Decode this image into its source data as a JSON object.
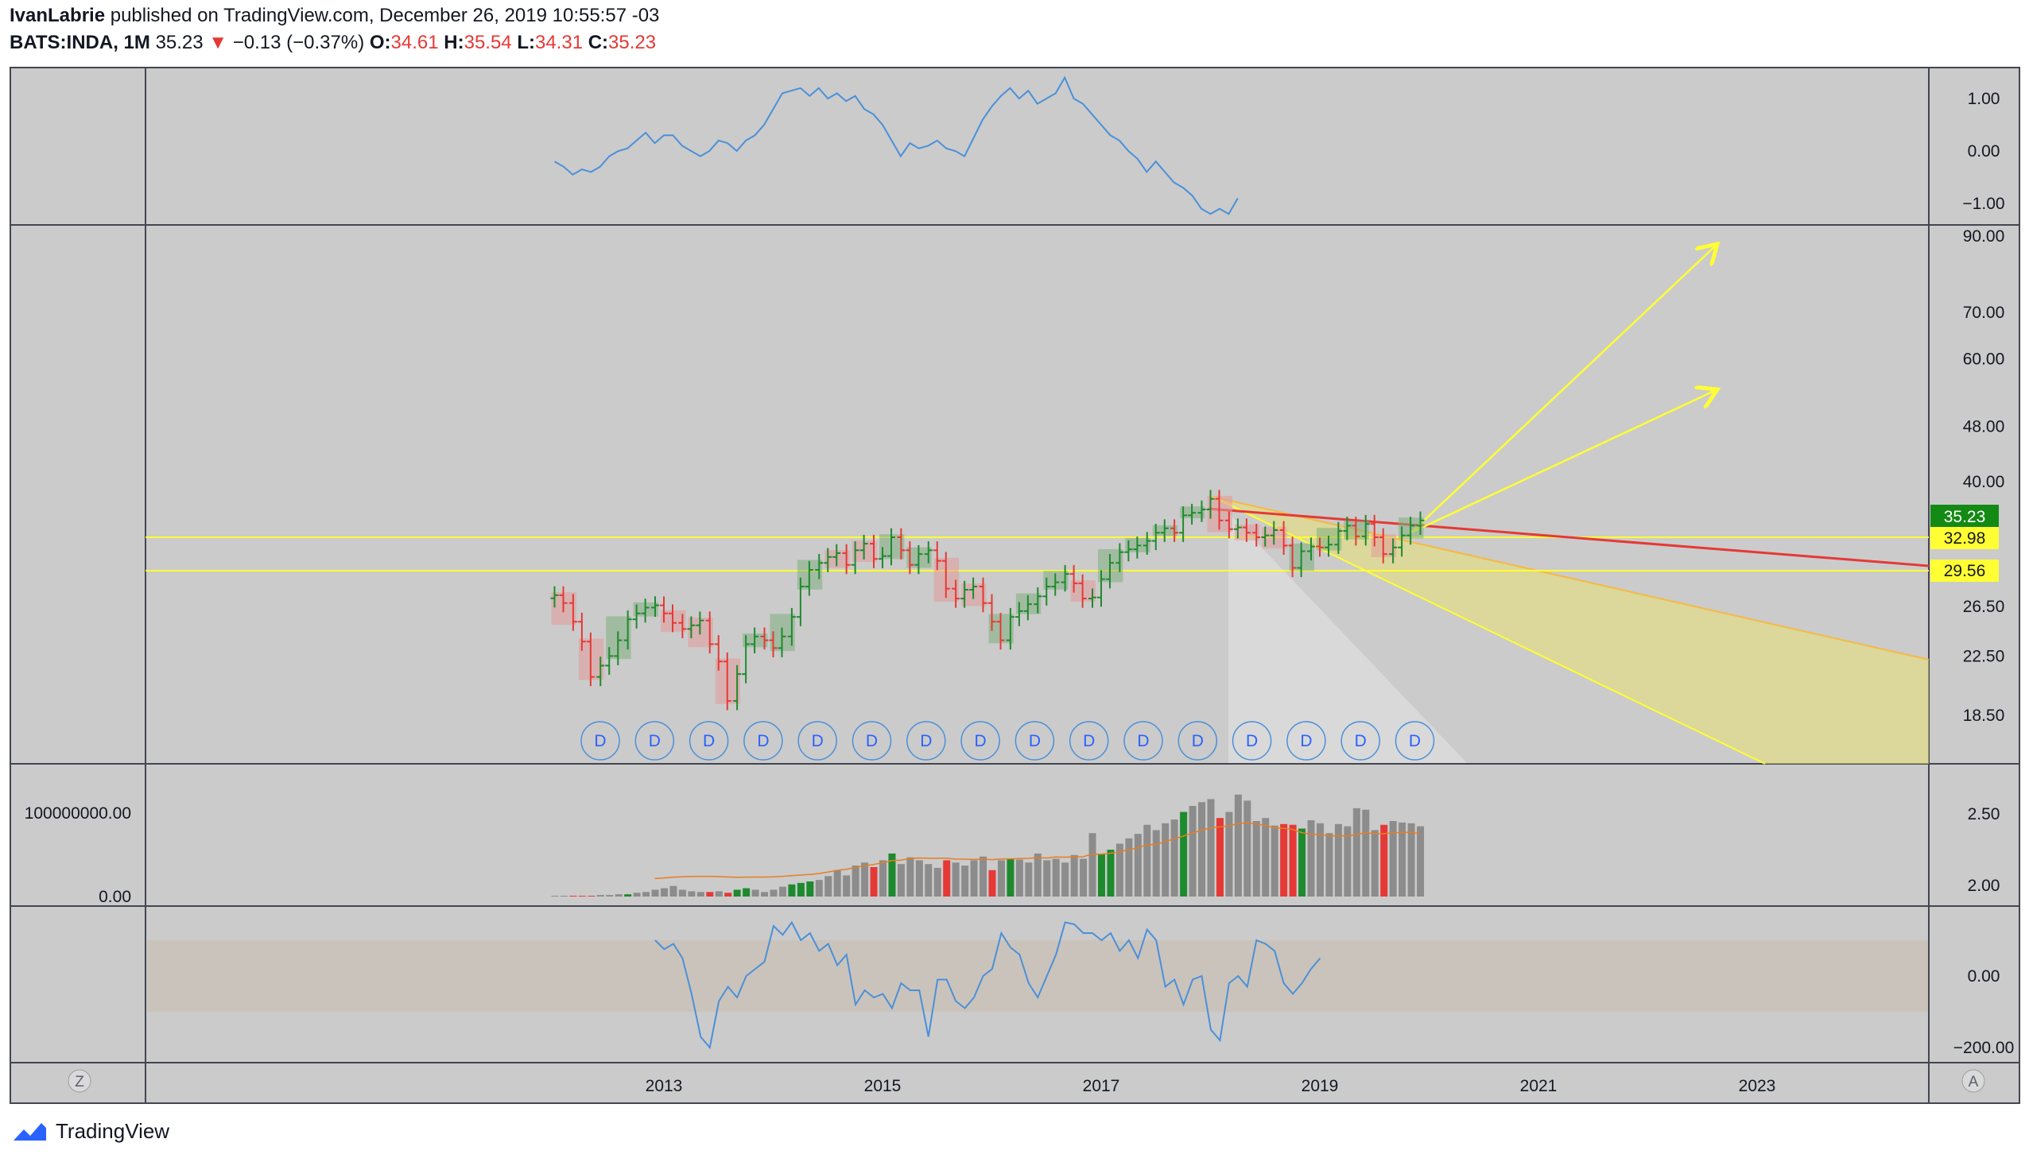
{
  "header": {
    "publisher": "IvanLabrie",
    "published_text": "published on TradingView.com, December 26, 2019 10:55:57 -03",
    "symbol": "BATS:INDA, 1M",
    "last": "35.23",
    "arrow": "▼",
    "change": "−0.13 (−0.37%)",
    "o_label": "O:",
    "o_val": "34.61",
    "h_label": "H:",
    "h_val": "35.54",
    "l_label": "L:",
    "l_val": "34.31",
    "c_label": "C:",
    "c_val": "35.23"
  },
  "colors": {
    "background": "#cbcbcb",
    "up": "#1e8a2e",
    "down": "#e53935",
    "level_line": "#ffff33",
    "trend_red": "#e53935",
    "volume_grey": "#8c8c8c",
    "volume_ma": "#e67e22",
    "indicator_line": "#4a90d9",
    "last_price_bg": "#138a13"
  },
  "footer": {
    "brand": "TradingView",
    "z_button": "Z",
    "a_button": "A"
  },
  "chart_data": {
    "type": "candlestick",
    "timeframe": "1M",
    "x_axis_labels": [
      "2013",
      "2015",
      "2017",
      "2019",
      "2021",
      "2023"
    ],
    "panes": {
      "top_indicator": {
        "ticks": [
          "1.00",
          "0.00",
          "−1.00"
        ],
        "ylim": [
          -1.4,
          1.5
        ]
      },
      "price": {
        "ticks": [
          "90.00",
          "70.00",
          "60.00",
          "48.00",
          "40.00",
          "26.50",
          "22.50",
          "18.50"
        ],
        "scale": "log",
        "ylim": [
          16,
          95
        ],
        "last_price_label": "35.23",
        "level_labels": [
          "32.98",
          "29.56"
        ],
        "dividend_markers": [
          "D",
          "D",
          "D",
          "D",
          "D",
          "D",
          "D",
          "D",
          "D",
          "D",
          "D",
          "D",
          "D",
          "D",
          "D",
          "D"
        ]
      },
      "volume": {
        "ticks_left": [
          "100000000.00",
          "0.00"
        ],
        "ticks_right": [
          "2.50",
          "2.00"
        ]
      },
      "oscillator": {
        "ticks": [
          "0.00",
          "−200.00"
        ],
        "band": [
          -100,
          100
        ],
        "ylim": [
          -230,
          190
        ]
      }
    },
    "price_series": {
      "t": [
        2012.0,
        2012.08,
        2012.17,
        2012.25,
        2012.33,
        2012.42,
        2012.5,
        2012.58,
        2012.67,
        2012.75,
        2012.83,
        2012.92,
        2013.0,
        2013.08,
        2013.17,
        2013.25,
        2013.33,
        2013.42,
        2013.5,
        2013.58,
        2013.67,
        2013.75,
        2013.83,
        2013.92,
        2014.0,
        2014.08,
        2014.17,
        2014.25,
        2014.33,
        2014.42,
        2014.5,
        2014.58,
        2014.67,
        2014.75,
        2014.83,
        2014.92,
        2015.0,
        2015.08,
        2015.17,
        2015.25,
        2015.33,
        2015.42,
        2015.5,
        2015.58,
        2015.67,
        2015.75,
        2015.83,
        2015.92,
        2016.0,
        2016.08,
        2016.17,
        2016.25,
        2016.33,
        2016.42,
        2016.5,
        2016.58,
        2016.67,
        2016.75,
        2016.83,
        2016.92,
        2017.0,
        2017.08,
        2017.17,
        2017.25,
        2017.33,
        2017.42,
        2017.5,
        2017.58,
        2017.67,
        2017.75,
        2017.83,
        2017.92,
        2018.0,
        2018.08,
        2018.17,
        2018.25,
        2018.33,
        2018.42,
        2018.5,
        2018.58,
        2018.67,
        2018.75,
        2018.83,
        2018.92,
        2019.0,
        2019.08,
        2019.17,
        2019.25,
        2019.33,
        2019.42,
        2019.5,
        2019.58,
        2019.67,
        2019.75,
        2019.83,
        2019.92
      ],
      "close": [
        27.5,
        26.8,
        25.2,
        23.6,
        21.0,
        21.8,
        22.5,
        23.7,
        25.4,
        25.9,
        26.4,
        26.6,
        25.9,
        25.1,
        24.6,
        24.9,
        25.3,
        23.4,
        22.1,
        19.4,
        21.2,
        23.4,
        24.0,
        23.7,
        23.1,
        24.0,
        25.6,
        28.3,
        29.9,
        30.6,
        31.2,
        31.6,
        30.4,
        31.9,
        32.6,
        31.0,
        31.3,
        33.3,
        31.9,
        30.4,
        31.5,
        31.9,
        30.8,
        28.1,
        27.2,
        28.0,
        28.3,
        26.8,
        25.2,
        23.7,
        25.6,
        26.1,
        26.7,
        27.4,
        28.3,
        28.7,
        29.5,
        28.6,
        27.2,
        27.3,
        29.0,
        30.6,
        31.7,
        32.0,
        32.4,
        32.9,
        33.8,
        34.3,
        33.8,
        35.8,
        36.1,
        36.5,
        37.8,
        35.2,
        34.2,
        34.4,
        33.8,
        33.3,
        33.5,
        34.1,
        32.4,
        30.1,
        31.8,
        32.3,
        32.2,
        32.5,
        34.0,
        34.6,
        33.4,
        34.8,
        33.3,
        31.5,
        32.2,
        33.5,
        34.6,
        35.2
      ]
    },
    "top_indicator_series": [
      -0.2,
      -0.3,
      -0.45,
      -0.35,
      -0.4,
      -0.3,
      -0.1,
      0.0,
      0.05,
      0.2,
      0.35,
      0.15,
      0.3,
      0.3,
      0.1,
      0.0,
      -0.1,
      0.0,
      0.2,
      0.15,
      0.0,
      0.2,
      0.3,
      0.5,
      0.8,
      1.1,
      1.15,
      1.2,
      1.05,
      1.2,
      1.0,
      1.1,
      0.95,
      1.05,
      0.8,
      0.7,
      0.5,
      0.2,
      -0.1,
      0.15,
      0.05,
      0.1,
      0.2,
      0.05,
      0.0,
      -0.1,
      0.25,
      0.6,
      0.85,
      1.05,
      1.2,
      1.0,
      1.15,
      0.9,
      1.0,
      1.1,
      1.4,
      1.0,
      0.9,
      0.7,
      0.5,
      0.3,
      0.2,
      0.0,
      -0.15,
      -0.4,
      -0.2,
      -0.4,
      -0.6,
      -0.7,
      -0.85,
      -1.1,
      -1.2,
      -1.1,
      -1.2,
      -0.9
    ],
    "volume_series": [
      1,
      1,
      1,
      1,
      1,
      2,
      2,
      3,
      3,
      5,
      6,
      9,
      11,
      14,
      9,
      7,
      6,
      6,
      7,
      5,
      9,
      11,
      9,
      6,
      9,
      13,
      16,
      18,
      20,
      22,
      27,
      35,
      28,
      41,
      45,
      39,
      48,
      57,
      43,
      52,
      48,
      43,
      38,
      48,
      45,
      41,
      48,
      53,
      35,
      48,
      50,
      49,
      45,
      57,
      48,
      50,
      45,
      55,
      50,
      84,
      56,
      62,
      70,
      77,
      83,
      95,
      88,
      97,
      102,
      112,
      120,
      125,
      129,
      104,
      112,
      135,
      127,
      100,
      104,
      94,
      96,
      95,
      90,
      101,
      97,
      84,
      96,
      93,
      117,
      115,
      88,
      95,
      100,
      98,
      97,
      93
    ],
    "oscillator_series": [
      100,
      75,
      90,
      50,
      -50,
      -170,
      -200,
      -70,
      -30,
      -60,
      0,
      20,
      40,
      140,
      115,
      150,
      100,
      120,
      70,
      90,
      30,
      60,
      -80,
      -40,
      -60,
      -50,
      -90,
      -20,
      -40,
      -40,
      -170,
      -10,
      -10,
      -70,
      -90,
      -60,
      0,
      20,
      120,
      80,
      60,
      -20,
      -60,
      0,
      60,
      150,
      145,
      120,
      120,
      100,
      120,
      70,
      100,
      50,
      130,
      100,
      -30,
      -10,
      -80,
      -10,
      0,
      -150,
      -180,
      -20,
      0,
      -30,
      100,
      90,
      70,
      -20,
      -50,
      -20,
      20,
      50
    ]
  }
}
